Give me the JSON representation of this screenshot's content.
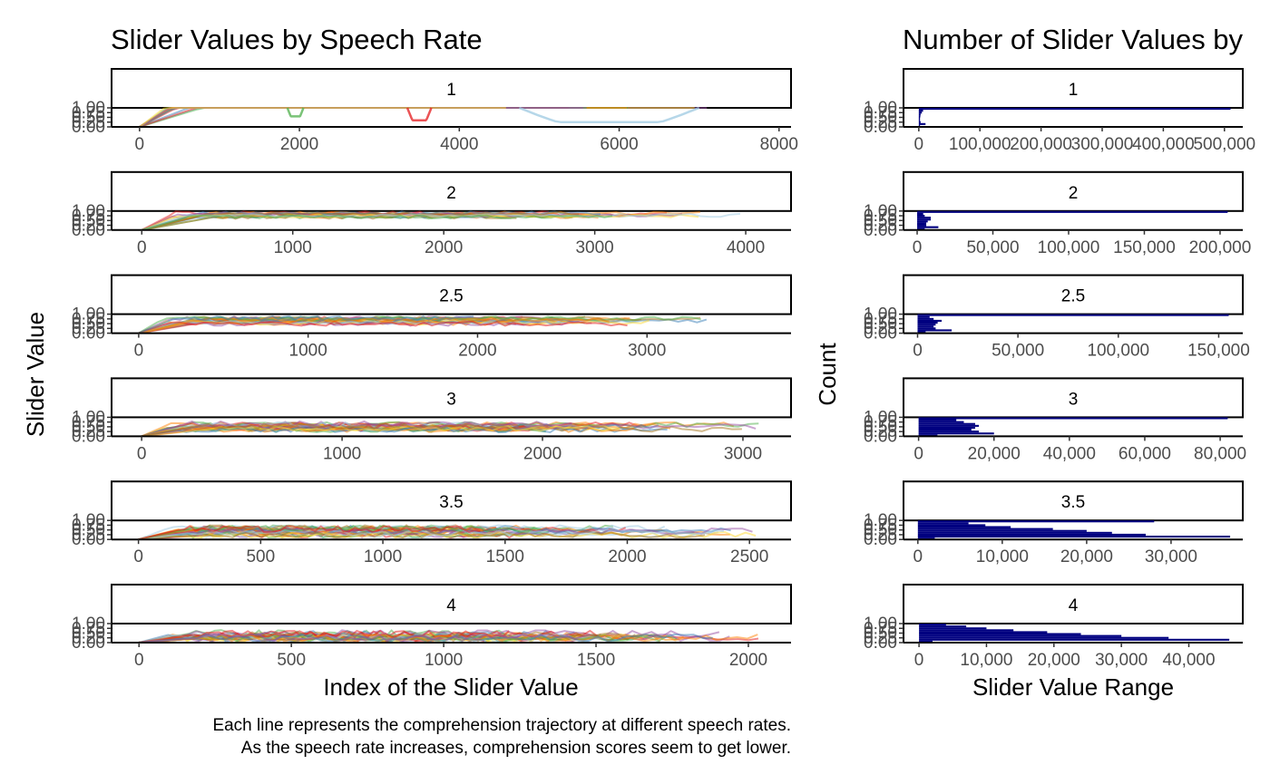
{
  "chart_data": [
    {
      "type": "line",
      "title": "Slider Values by Speech Rate",
      "xlabel": "Index of the Slider Value",
      "ylabel": "Slider Value",
      "y_ticks": [
        "0.00",
        "0.25",
        "0.50",
        "0.75",
        "1.00"
      ],
      "ylim": [
        0,
        1
      ],
      "caption": [
        "Each line represents the comprehension trajectory at different speech rates.",
        "As the speech rate increases, comprehension scores seem to get lower."
      ],
      "series_colors": [
        "#4daf4a",
        "#e41a1c",
        "#ff7f00",
        "#377eb8",
        "#984ea3",
        "#ffd92f",
        "#a6761d",
        "#9ecae1"
      ],
      "panels": [
        {
          "strip": "1",
          "xlim": [
            -350,
            8150
          ],
          "x_ticks": [
            {
              "v": 0,
              "label": "0"
            },
            {
              "v": 2000,
              "label": "2000"
            },
            {
              "v": 4000,
              "label": "4000"
            },
            {
              "v": 6000,
              "label": "6000"
            },
            {
              "v": 8000,
              "label": "8000"
            }
          ],
          "max_index": 7600,
          "dips": [
            {
              "color": "#4daf4a",
              "x0": 1850,
              "x1": 2050,
              "min": 0.55
            },
            {
              "color": "#e41a1c",
              "x0": 3350,
              "x1": 3650,
              "min": 0.35
            },
            {
              "color": "#9ecae1",
              "x0": 4750,
              "x1": 7000,
              "min": 0.25
            }
          ]
        },
        {
          "strip": "2",
          "xlim": [
            -200,
            4300
          ],
          "x_ticks": [
            {
              "v": 0,
              "label": "0"
            },
            {
              "v": 1000,
              "label": "1000"
            },
            {
              "v": 2000,
              "label": "2000"
            },
            {
              "v": 3000,
              "label": "3000"
            },
            {
              "v": 4000,
              "label": "4000"
            }
          ],
          "max_index": 4100
        },
        {
          "strip": "2.5",
          "xlim": [
            -160,
            3850
          ],
          "x_ticks": [
            {
              "v": 0,
              "label": "0"
            },
            {
              "v": 1000,
              "label": "1000"
            },
            {
              "v": 2000,
              "label": "2000"
            },
            {
              "v": 3000,
              "label": "3000"
            }
          ],
          "max_index": 3500
        },
        {
          "strip": "3",
          "xlim": [
            -150,
            3240
          ],
          "x_ticks": [
            {
              "v": 0,
              "label": "0"
            },
            {
              "v": 1000,
              "label": "1000"
            },
            {
              "v": 2000,
              "label": "2000"
            },
            {
              "v": 3000,
              "label": "3000"
            }
          ],
          "max_index": 3080
        },
        {
          "strip": "3.5",
          "xlim": [
            -110,
            2670
          ],
          "x_ticks": [
            {
              "v": 0,
              "label": "0"
            },
            {
              "v": 500,
              "label": "500"
            },
            {
              "v": 1000,
              "label": "1000"
            },
            {
              "v": 1500,
              "label": "1500"
            },
            {
              "v": 2000,
              "label": "2000"
            },
            {
              "v": 2500,
              "label": "2500"
            }
          ],
          "max_index": 2540
        },
        {
          "strip": "4",
          "xlim": [
            -90,
            2140
          ],
          "x_ticks": [
            {
              "v": 0,
              "label": "0"
            },
            {
              "v": 500,
              "label": "500"
            },
            {
              "v": 1000,
              "label": "1000"
            },
            {
              "v": 1500,
              "label": "1500"
            },
            {
              "v": 2000,
              "label": "2000"
            }
          ],
          "max_index": 2040
        }
      ]
    },
    {
      "type": "bar",
      "title": "Number of Slider Values by",
      "xlabel": "Slider Value Range",
      "ylabel": "Count",
      "orientation": "horizontal",
      "bar_color": "#000080",
      "y_ticks": [
        "0.00",
        "0.25",
        "0.50",
        "0.75",
        "1.00"
      ],
      "ylim": [
        0,
        1
      ],
      "panels": [
        {
          "strip": "1",
          "xlim": [
            -25000,
            530000
          ],
          "x_ticks": [
            {
              "v": 0,
              "label": "0"
            },
            {
              "v": 100000,
              "label": "100,000"
            },
            {
              "v": 200000,
              "label": "200,000"
            },
            {
              "v": 300000,
              "label": "300,000"
            },
            {
              "v": 400000,
              "label": "400,000"
            },
            {
              "v": 500000,
              "label": "500,000"
            }
          ],
          "bins": [
            {
              "y0": 0.0,
              "y1": 0.1,
              "count": 2000
            },
            {
              "y0": 0.1,
              "y1": 0.2,
              "count": 11000
            },
            {
              "y0": 0.2,
              "y1": 0.3,
              "count": 3000
            },
            {
              "y0": 0.3,
              "y1": 0.4,
              "count": 2000
            },
            {
              "y0": 0.4,
              "y1": 0.5,
              "count": 2000
            },
            {
              "y0": 0.5,
              "y1": 0.6,
              "count": 2500
            },
            {
              "y0": 0.6,
              "y1": 0.7,
              "count": 3000
            },
            {
              "y0": 0.7,
              "y1": 0.8,
              "count": 5000
            },
            {
              "y0": 0.8,
              "y1": 0.9,
              "count": 7000
            },
            {
              "y0": 0.9,
              "y1": 1.0,
              "count": 510000
            }
          ]
        },
        {
          "strip": "2",
          "xlim": [
            -9000,
            215000
          ],
          "x_ticks": [
            {
              "v": 0,
              "label": "0"
            },
            {
              "v": 50000,
              "label": "50,000"
            },
            {
              "v": 100000,
              "label": "100,000"
            },
            {
              "v": 150000,
              "label": "150,000"
            },
            {
              "v": 200000,
              "label": "200,000"
            }
          ],
          "bins": [
            {
              "y0": 0.0,
              "y1": 0.1,
              "count": 5000
            },
            {
              "y0": 0.1,
              "y1": 0.2,
              "count": 14000
            },
            {
              "y0": 0.2,
              "y1": 0.3,
              "count": 6000
            },
            {
              "y0": 0.3,
              "y1": 0.4,
              "count": 6000
            },
            {
              "y0": 0.4,
              "y1": 0.5,
              "count": 7000
            },
            {
              "y0": 0.5,
              "y1": 0.6,
              "count": 9000
            },
            {
              "y0": 0.6,
              "y1": 0.7,
              "count": 9000
            },
            {
              "y0": 0.7,
              "y1": 0.8,
              "count": 5000
            },
            {
              "y0": 0.8,
              "y1": 0.9,
              "count": 4000
            },
            {
              "y0": 0.9,
              "y1": 1.0,
              "count": 205000
            }
          ]
        },
        {
          "strip": "2.5",
          "xlim": [
            -7000,
            162000
          ],
          "x_ticks": [
            {
              "v": 0,
              "label": "0"
            },
            {
              "v": 50000,
              "label": "50,000"
            },
            {
              "v": 100000,
              "label": "100,000"
            },
            {
              "v": 150000,
              "label": "150,000"
            }
          ],
          "bins": [
            {
              "y0": 0.0,
              "y1": 0.1,
              "count": 4000
            },
            {
              "y0": 0.1,
              "y1": 0.2,
              "count": 17000
            },
            {
              "y0": 0.2,
              "y1": 0.3,
              "count": 9000
            },
            {
              "y0": 0.3,
              "y1": 0.4,
              "count": 8000
            },
            {
              "y0": 0.4,
              "y1": 0.5,
              "count": 9000
            },
            {
              "y0": 0.5,
              "y1": 0.6,
              "count": 10000
            },
            {
              "y0": 0.6,
              "y1": 0.7,
              "count": 12000
            },
            {
              "y0": 0.7,
              "y1": 0.8,
              "count": 8000
            },
            {
              "y0": 0.8,
              "y1": 0.9,
              "count": 6000
            },
            {
              "y0": 0.9,
              "y1": 1.0,
              "count": 155000
            }
          ]
        },
        {
          "strip": "3",
          "xlim": [
            -4000,
            86000
          ],
          "x_ticks": [
            {
              "v": 0,
              "label": "0"
            },
            {
              "v": 20000,
              "label": "20,000"
            },
            {
              "v": 40000,
              "label": "40,000"
            },
            {
              "v": 60000,
              "label": "60,000"
            },
            {
              "v": 80000,
              "label": "80,000"
            }
          ],
          "bins": [
            {
              "y0": 0.0,
              "y1": 0.1,
              "count": 5000
            },
            {
              "y0": 0.1,
              "y1": 0.2,
              "count": 20000
            },
            {
              "y0": 0.2,
              "y1": 0.3,
              "count": 16000
            },
            {
              "y0": 0.3,
              "y1": 0.4,
              "count": 14000
            },
            {
              "y0": 0.4,
              "y1": 0.5,
              "count": 15000
            },
            {
              "y0": 0.5,
              "y1": 0.6,
              "count": 16000
            },
            {
              "y0": 0.6,
              "y1": 0.7,
              "count": 15000
            },
            {
              "y0": 0.7,
              "y1": 0.8,
              "count": 12000
            },
            {
              "y0": 0.8,
              "y1": 0.9,
              "count": 10000
            },
            {
              "y0": 0.9,
              "y1": 1.0,
              "count": 82000
            }
          ]
        },
        {
          "strip": "3.5",
          "xlim": [
            -1700,
            38500
          ],
          "x_ticks": [
            {
              "v": 0,
              "label": "0"
            },
            {
              "v": 10000,
              "label": "10,000"
            },
            {
              "v": 20000,
              "label": "20,000"
            },
            {
              "v": 30000,
              "label": "30,000"
            }
          ],
          "bins": [
            {
              "y0": 0.0,
              "y1": 0.1,
              "count": 2000
            },
            {
              "y0": 0.1,
              "y1": 0.2,
              "count": 37000
            },
            {
              "y0": 0.2,
              "y1": 0.3,
              "count": 27000
            },
            {
              "y0": 0.3,
              "y1": 0.4,
              "count": 23000
            },
            {
              "y0": 0.4,
              "y1": 0.5,
              "count": 20000
            },
            {
              "y0": 0.5,
              "y1": 0.6,
              "count": 16000
            },
            {
              "y0": 0.6,
              "y1": 0.7,
              "count": 11000
            },
            {
              "y0": 0.7,
              "y1": 0.8,
              "count": 8000
            },
            {
              "y0": 0.8,
              "y1": 0.9,
              "count": 6000
            },
            {
              "y0": 0.9,
              "y1": 1.0,
              "count": 28000
            }
          ]
        },
        {
          "strip": "4",
          "xlim": [
            -2300,
            48000
          ],
          "x_ticks": [
            {
              "v": 0,
              "label": "0"
            },
            {
              "v": 10000,
              "label": "10,000"
            },
            {
              "v": 20000,
              "label": "20,000"
            },
            {
              "v": 30000,
              "label": "30,000"
            },
            {
              "v": 40000,
              "label": "40,000"
            }
          ],
          "bins": [
            {
              "y0": 0.0,
              "y1": 0.1,
              "count": 2000
            },
            {
              "y0": 0.1,
              "y1": 0.2,
              "count": 46000
            },
            {
              "y0": 0.2,
              "y1": 0.3,
              "count": 37000
            },
            {
              "y0": 0.3,
              "y1": 0.4,
              "count": 30000
            },
            {
              "y0": 0.4,
              "y1": 0.5,
              "count": 24000
            },
            {
              "y0": 0.5,
              "y1": 0.6,
              "count": 19000
            },
            {
              "y0": 0.6,
              "y1": 0.7,
              "count": 14000
            },
            {
              "y0": 0.7,
              "y1": 0.8,
              "count": 10000
            },
            {
              "y0": 0.8,
              "y1": 0.9,
              "count": 7000
            },
            {
              "y0": 0.9,
              "y1": 1.0,
              "count": 4000
            }
          ]
        }
      ]
    }
  ]
}
